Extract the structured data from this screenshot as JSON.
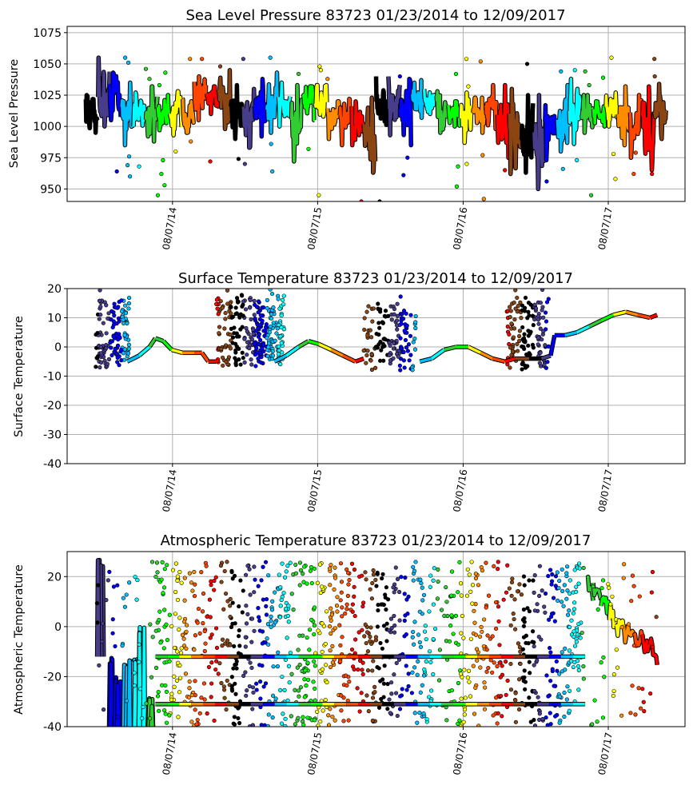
{
  "chart_data": [
    {
      "type": "scatter",
      "title": "Sea Level Pressure 83723  01/23/2014 to 12/09/2017",
      "ylabel": "Sea Level Pressure",
      "xlabel": "",
      "xlim": [
        "2013-11-15",
        "2018-02-16"
      ],
      "ylim": [
        940,
        1080
      ],
      "yticks": [
        950,
        975,
        1000,
        1025,
        1050,
        1075
      ],
      "xticks": [
        {
          "date": "2014-08-07",
          "label": "08/07/14"
        },
        {
          "date": "2015-08-07",
          "label": "08/07/15"
        },
        {
          "date": "2016-08-07",
          "label": "08/07/16"
        },
        {
          "date": "2017-08-07",
          "label": "08/07/17"
        }
      ],
      "grid": true,
      "monthly_range": [
        [
          "2014-01",
          995,
          1025
        ],
        [
          "2014-02",
          1000,
          1055
        ],
        [
          "2014-03",
          1005,
          1043
        ],
        [
          "2014-04",
          985,
          1035
        ],
        [
          "2014-05",
          1000,
          1027
        ],
        [
          "2014-06",
          988,
          1032
        ],
        [
          "2014-07",
          997,
          1025
        ],
        [
          "2014-08",
          993,
          1028
        ],
        [
          "2014-09",
          995,
          1022
        ],
        [
          "2014-10",
          1005,
          1040
        ],
        [
          "2014-11",
          1010,
          1032
        ],
        [
          "2014-12",
          998,
          1045
        ],
        [
          "2015-01",
          990,
          1033
        ],
        [
          "2015-02",
          983,
          1030
        ],
        [
          "2015-03",
          992,
          1038
        ],
        [
          "2015-04",
          995,
          1043
        ],
        [
          "2015-05",
          1000,
          1035
        ],
        [
          "2015-06",
          972,
          1033
        ],
        [
          "2015-07",
          1005,
          1032
        ],
        [
          "2015-08",
          1005,
          1033
        ],
        [
          "2015-09",
          990,
          1020
        ],
        [
          "2015-10",
          985,
          1022
        ],
        [
          "2015-11",
          985,
          1020
        ],
        [
          "2015-12",
          963,
          1023
        ],
        [
          "2016-01",
          990,
          1040
        ],
        [
          "2016-02",
          993,
          1040
        ],
        [
          "2016-03",
          985,
          1038
        ],
        [
          "2016-04",
          1007,
          1037
        ],
        [
          "2016-05",
          1010,
          1030
        ],
        [
          "2016-06",
          995,
          1028
        ],
        [
          "2016-07",
          1000,
          1020
        ],
        [
          "2016-08",
          987,
          1027
        ],
        [
          "2016-09",
          995,
          1023
        ],
        [
          "2016-10",
          998,
          1033
        ],
        [
          "2016-11",
          975,
          1033
        ],
        [
          "2016-12",
          962,
          1030
        ],
        [
          "2017-01",
          963,
          1025
        ],
        [
          "2017-02",
          950,
          1025
        ],
        [
          "2017-03",
          973,
          1017
        ],
        [
          "2017-04",
          980,
          1033
        ],
        [
          "2017-05",
          986,
          1038
        ],
        [
          "2017-06",
          995,
          1025
        ],
        [
          "2017-07",
          1000,
          1020
        ],
        [
          "2017-08",
          1000,
          1027
        ],
        [
          "2017-09",
          985,
          1032
        ],
        [
          "2017-10",
          975,
          1025
        ],
        [
          "2017-11",
          965,
          1032
        ],
        [
          "2017-12",
          990,
          1034
        ]
      ],
      "outliers": [
        [
          "2014-03-20",
          964
        ],
        [
          "2014-04-10",
          1055
        ],
        [
          "2014-04-18",
          1051
        ],
        [
          "2014-04-20",
          976
        ],
        [
          "2014-04-16",
          969
        ],
        [
          "2014-04-22",
          960
        ],
        [
          "2014-05-15",
          968
        ],
        [
          "2014-06-01",
          1046
        ],
        [
          "2014-06-10",
          1038
        ],
        [
          "2014-07-01",
          945
        ],
        [
          "2014-07-05",
          1033
        ],
        [
          "2014-07-10",
          962
        ],
        [
          "2014-07-14",
          973
        ],
        [
          "2014-07-18",
          953
        ],
        [
          "2014-07-20",
          1043
        ],
        [
          "2014-08-15",
          980
        ],
        [
          "2014-09-20",
          1054
        ],
        [
          "2014-09-22",
          988
        ],
        [
          "2014-10-20",
          1054
        ],
        [
          "2014-11-10",
          972
        ],
        [
          "2014-12-05",
          1048
        ],
        [
          "2015-01-20",
          974
        ],
        [
          "2015-02-01",
          1054
        ],
        [
          "2015-02-05",
          970
        ],
        [
          "2015-04-10",
          1055
        ],
        [
          "2015-04-12",
          986
        ],
        [
          "2015-04-15",
          964
        ],
        [
          "2015-06-20",
          1042
        ],
        [
          "2015-07-15",
          982
        ],
        [
          "2015-08-10",
          945
        ],
        [
          "2015-08-12",
          1048
        ],
        [
          "2015-08-15",
          1045
        ],
        [
          "2015-09-01",
          1038
        ],
        [
          "2015-11-25",
          940
        ],
        [
          "2016-01-10",
          940
        ],
        [
          "2016-03-01",
          1040
        ],
        [
          "2016-03-10",
          961
        ],
        [
          "2016-03-20",
          975
        ],
        [
          "2016-07-20",
          1042
        ],
        [
          "2016-07-25",
          968
        ],
        [
          "2016-07-22",
          952
        ],
        [
          "2016-08-15",
          1054
        ],
        [
          "2016-08-20",
          1032
        ],
        [
          "2016-08-16",
          970
        ],
        [
          "2016-09-20",
          1052
        ],
        [
          "2016-09-25",
          977
        ],
        [
          "2016-09-28",
          942
        ],
        [
          "2016-11-20",
          965
        ],
        [
          "2017-01-15",
          1050
        ],
        [
          "2017-03-05",
          956
        ],
        [
          "2017-04-10",
          1044
        ],
        [
          "2017-04-15",
          966
        ],
        [
          "2017-05-15",
          1045
        ],
        [
          "2017-05-20",
          973
        ],
        [
          "2017-06-10",
          1044
        ],
        [
          "2017-06-20",
          1033
        ],
        [
          "2017-06-25",
          945
        ],
        [
          "2017-07-25",
          1039
        ],
        [
          "2017-08-15",
          1055
        ],
        [
          "2017-08-20",
          978
        ],
        [
          "2017-08-25",
          958
        ],
        [
          "2017-10-10",
          962
        ],
        [
          "2017-10-15",
          979
        ],
        [
          "2017-11-25",
          962
        ],
        [
          "2017-12-01",
          1054
        ],
        [
          "2017-12-02",
          1040
        ]
      ]
    },
    {
      "type": "scatter",
      "title": "Surface Temperature 83723  01/23/2014 to 12/09/2017",
      "ylabel": "Surface Temperature",
      "xlabel": "",
      "xlim": [
        "2013-11-15",
        "2018-02-16"
      ],
      "ylim": [
        -40,
        20
      ],
      "yticks": [
        -40,
        -30,
        -20,
        -10,
        0,
        10,
        20
      ],
      "xticks": [
        {
          "date": "2014-08-07",
          "label": "08/07/14"
        },
        {
          "date": "2015-08-07",
          "label": "08/07/15"
        },
        {
          "date": "2016-08-07",
          "label": "08/07/16"
        },
        {
          "date": "2017-08-07",
          "label": "08/07/17"
        }
      ],
      "grid": true,
      "trace": [
        [
          "2014-04-15",
          -5
        ],
        [
          "2014-05-15",
          -3
        ],
        [
          "2014-06-10",
          0
        ],
        [
          "2014-06-25",
          3
        ],
        [
          "2014-07-15",
          2
        ],
        [
          "2014-08-05",
          -1
        ],
        [
          "2014-09-01",
          -2
        ],
        [
          "2014-10-01",
          -2
        ],
        [
          "2014-10-20",
          -2
        ],
        [
          "2014-11-05",
          -5
        ],
        [
          "2014-11-25",
          -5
        ],
        [
          "2015-04-20",
          -5
        ],
        [
          "2015-05-20",
          -3
        ],
        [
          "2015-06-20",
          0
        ],
        [
          "2015-07-15",
          2
        ],
        [
          "2015-08-10",
          1
        ],
        [
          "2015-09-10",
          -1
        ],
        [
          "2015-10-10",
          -3
        ],
        [
          "2015-11-10",
          -5
        ],
        [
          "2015-12-01",
          -4
        ],
        [
          "2016-04-20",
          -5
        ],
        [
          "2016-05-20",
          -4
        ],
        [
          "2016-06-20",
          -1
        ],
        [
          "2016-07-20",
          0
        ],
        [
          "2016-08-20",
          0
        ],
        [
          "2016-09-20",
          -2
        ],
        [
          "2016-10-20",
          -4
        ],
        [
          "2016-11-20",
          -5
        ],
        [
          "2016-12-15",
          -4
        ],
        [
          "2017-01-20",
          -4
        ],
        [
          "2017-02-20",
          -4
        ],
        [
          "2017-03-15",
          -3
        ],
        [
          "2017-03-25",
          4
        ],
        [
          "2017-04-20",
          4
        ],
        [
          "2017-05-20",
          5
        ],
        [
          "2017-06-20",
          7
        ],
        [
          "2017-07-20",
          9
        ],
        [
          "2017-08-20",
          11
        ],
        [
          "2017-09-20",
          12
        ],
        [
          "2017-10-20",
          11
        ],
        [
          "2017-11-20",
          10
        ],
        [
          "2017-12-08",
          11
        ]
      ],
      "clusters": [
        {
          "start": "2014-01-25",
          "end": "2014-04-20",
          "levels": [
            12,
            1,
            -3
          ]
        },
        {
          "start": "2014-11-25",
          "end": "2015-03-15",
          "levels": [
            13,
            3,
            -3
          ]
        },
        {
          "start": "2015-03-01",
          "end": "2015-05-15",
          "levels": [
            10,
            4,
            -2
          ]
        },
        {
          "start": "2015-12-01",
          "end": "2016-04-10",
          "levels": [
            10,
            1,
            -4
          ]
        },
        {
          "start": "2016-11-25",
          "end": "2017-03-10",
          "levels": [
            13,
            4,
            -4
          ]
        }
      ]
    },
    {
      "type": "scatter",
      "title": "Atmospheric Temperature 83723  01/23/2014 to 12/09/2017",
      "ylabel": "Atmospheric Temperature",
      "xlabel": "",
      "xlim": [
        "2013-11-15",
        "2018-02-16"
      ],
      "ylim": [
        -40,
        30
      ],
      "yticks": [
        -40,
        -20,
        0,
        20
      ],
      "xticks": [
        {
          "date": "2014-08-07",
          "label": "08/07/14"
        },
        {
          "date": "2015-08-07",
          "label": "08/07/15"
        },
        {
          "date": "2016-08-07",
          "label": "08/07/16"
        },
        {
          "date": "2017-08-07",
          "label": "08/07/17"
        }
      ],
      "grid": true,
      "early_spikes": [
        [
          "2014-02-05",
          -12,
          27
        ],
        [
          "2014-03-01",
          -40,
          -12
        ],
        [
          "2014-03-20",
          -40,
          -20
        ],
        [
          "2014-04-10",
          -40,
          -15
        ],
        [
          "2014-04-25",
          -40,
          -12
        ],
        [
          "2014-05-10",
          -40,
          -12
        ],
        [
          "2014-05-20",
          -40,
          0
        ],
        [
          "2014-06-10",
          -40,
          -28
        ]
      ],
      "scatter_region": {
        "start": "2014-06-25",
        "end": "2017-06-10",
        "min": -40,
        "max": 26
      },
      "flat_lines": [
        -12,
        -31
      ],
      "late_trace": [
        [
          "2017-06-15",
          19
        ],
        [
          "2017-06-30",
          14
        ],
        [
          "2017-07-20",
          11
        ],
        [
          "2017-08-10",
          6
        ],
        [
          "2017-08-25",
          1
        ],
        [
          "2017-09-15",
          -2
        ],
        [
          "2017-10-10",
          -4
        ],
        [
          "2017-11-01",
          -6
        ],
        [
          "2017-11-20",
          -8
        ],
        [
          "2017-12-08",
          -12
        ]
      ]
    }
  ],
  "month_colors": [
    "#000000",
    "#483D8B",
    "#0000FF",
    "#00BFFF",
    "#00FFFF",
    "#32CD32",
    "#00FF00",
    "#FFFF00",
    "#FF8C00",
    "#FF4500",
    "#FF0000",
    "#8B4513"
  ]
}
